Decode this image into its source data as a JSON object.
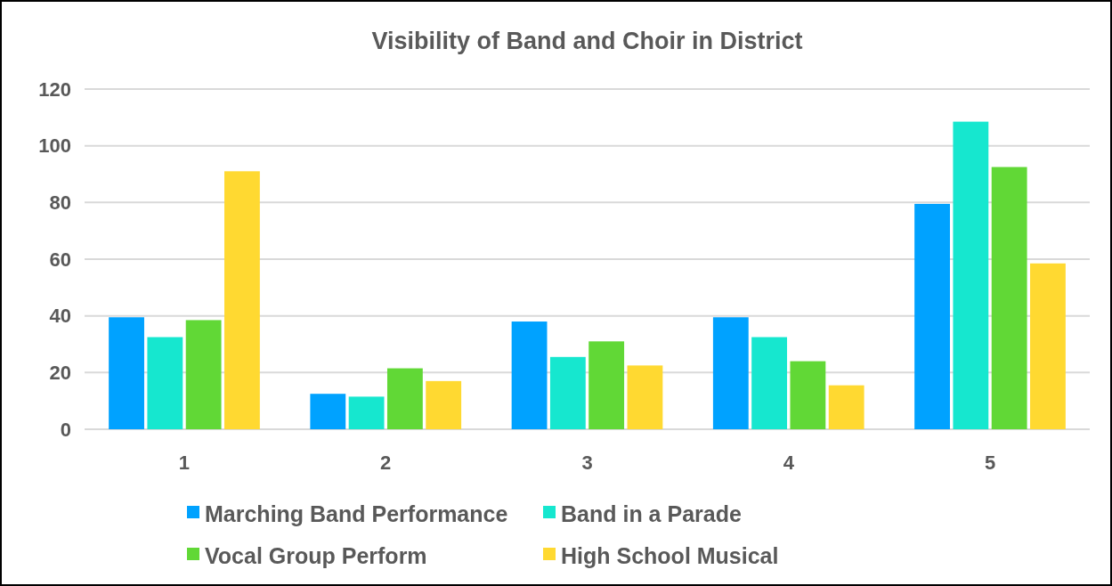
{
  "chart_data": {
    "type": "bar",
    "title": "Visibility of Band and Choir in District",
    "categories": [
      "1",
      "2",
      "3",
      "4",
      "5"
    ],
    "series": [
      {
        "name": "Marching Band Performance",
        "color": "#00a2ff",
        "values": [
          39.5,
          12.5,
          38,
          39.5,
          79.5
        ]
      },
      {
        "name": "Band in a Parade",
        "color": "#16e7cf",
        "values": [
          32.5,
          11.5,
          25.5,
          32.5,
          108.5
        ]
      },
      {
        "name": "Vocal Group Perform",
        "color": "#61d836",
        "values": [
          38.5,
          21.5,
          31,
          24,
          92.5
        ]
      },
      {
        "name": "High School Musical",
        "color": "#ffd931",
        "values": [
          91,
          17,
          22.5,
          15.5,
          58.5
        ]
      }
    ],
    "ylim": [
      0,
      120
    ],
    "yticks": [
      0,
      20,
      40,
      60,
      80,
      100,
      120
    ],
    "grid": "y",
    "legend": "bottom"
  }
}
